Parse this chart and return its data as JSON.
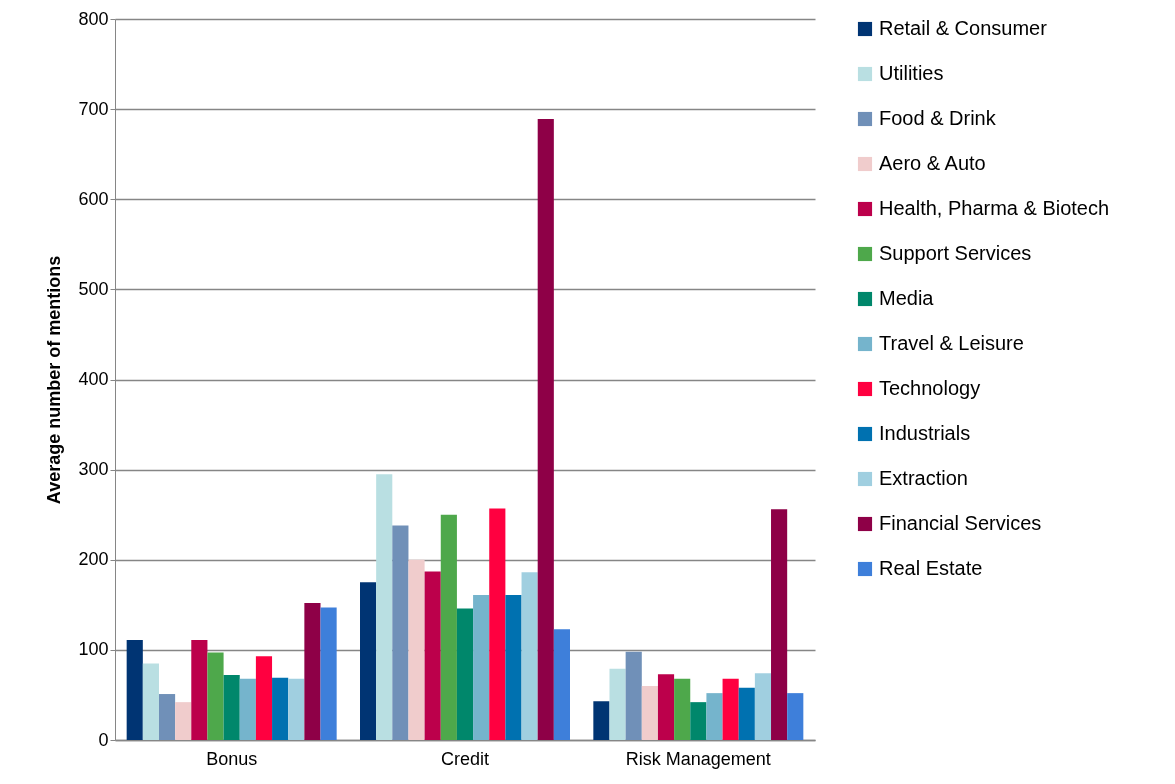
{
  "chart_data": {
    "type": "bar",
    "ylabel": "Average number of mentions",
    "categories": [
      "Bonus",
      "Credit",
      "Risk Management"
    ],
    "series": [
      {
        "name": "Retail & Consumer",
        "color": "#003473",
        "values": [
          111,
          175,
          43
        ]
      },
      {
        "name": "Utilities",
        "color": "#b9dfe2",
        "values": [
          85,
          295,
          79
        ]
      },
      {
        "name": "Food & Drink",
        "color": "#7090b8",
        "values": [
          51,
          238,
          98
        ]
      },
      {
        "name": "Aero & Auto",
        "color": "#f0cccc",
        "values": [
          42,
          200,
          60
        ]
      },
      {
        "name": "Health, Pharma & Biotech",
        "color": "#bc004b",
        "values": [
          111,
          187,
          73
        ]
      },
      {
        "name": "Support Services",
        "color": "#4ea84b",
        "values": [
          97,
          250,
          68
        ]
      },
      {
        "name": "Media",
        "color": "#00876b",
        "values": [
          72,
          146,
          42
        ]
      },
      {
        "name": "Travel & Leisure",
        "color": "#75b4cc",
        "values": [
          68,
          161,
          52
        ]
      },
      {
        "name": "Technology",
        "color": "#ff0040",
        "values": [
          93,
          257,
          68
        ]
      },
      {
        "name": "Industrials",
        "color": "#0071b0",
        "values": [
          69,
          161,
          58
        ]
      },
      {
        "name": "Extraction",
        "color": "#a0cfe0",
        "values": [
          68,
          186,
          74
        ]
      },
      {
        "name": "Financial Services",
        "color": "#8e0047",
        "values": [
          152,
          689,
          256
        ]
      },
      {
        "name": "Real Estate",
        "color": "#3e7fda",
        "values": [
          147,
          123,
          52
        ]
      }
    ],
    "ylim": [
      0,
      800
    ],
    "yticks": [
      0,
      100,
      200,
      300,
      400,
      500,
      600,
      700,
      800
    ],
    "grid": "y",
    "legend": "right"
  }
}
